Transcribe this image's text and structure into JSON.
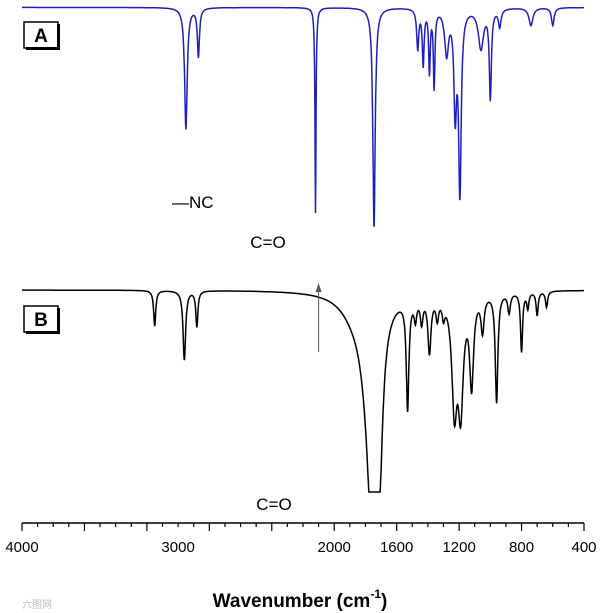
{
  "chart_data": {
    "type": "line",
    "xlabel": "Wavenumber (cm",
    "xlabel_unit_superscript": "-1",
    "xlabel_close": ")",
    "xlim": [
      4000,
      400
    ],
    "x_reversed": true,
    "xticks": [
      4000,
      3600,
      3200,
      2800,
      2400,
      2000,
      1600,
      1200,
      800,
      400
    ],
    "xtick_labels": [
      "4000",
      "3000",
      "2000",
      "1600",
      "1200",
      "800",
      "400"
    ],
    "xtick_label_positions": [
      4000,
      3000,
      2000,
      1600,
      1200,
      800,
      400
    ],
    "grid": false,
    "panels": [
      {
        "label": "A",
        "color": "#1f1fbf",
        "annotations": [
          {
            "text": "NC",
            "x": 2080,
            "leader": "—"
          },
          {
            "text": "C=O",
            "x": 1740
          }
        ],
        "series": {
          "baseline": 0.02,
          "peaks": [
            [
              2950,
              0.55,
              10
            ],
            [
              2870,
              0.22,
              8
            ],
            [
              2120,
              0.93,
              4
            ],
            [
              1745,
              1.0,
              9
            ],
            [
              1465,
              0.18,
              8
            ],
            [
              1430,
              0.25,
              7
            ],
            [
              1390,
              0.28,
              6
            ],
            [
              1360,
              0.35,
              6
            ],
            [
              1280,
              0.2,
              15
            ],
            [
              1225,
              0.45,
              10
            ],
            [
              1195,
              0.82,
              10
            ],
            [
              1060,
              0.18,
              20
            ],
            [
              1000,
              0.4,
              8
            ],
            [
              940,
              0.08,
              10
            ],
            [
              740,
              0.08,
              15
            ],
            [
              600,
              0.08,
              10
            ]
          ]
        }
      },
      {
        "label": "B",
        "color": "#000000",
        "annotations": [
          {
            "text": "C=O",
            "x": 1730
          },
          {
            "text": "",
            "x": 2100,
            "arrow": "up"
          }
        ],
        "series": {
          "baseline": 0.03,
          "peaks": [
            [
              3150,
              0.18,
              8
            ],
            [
              2960,
              0.35,
              10
            ],
            [
              2880,
              0.18,
              8
            ],
            [
              1760,
              0.75,
              30
            ],
            [
              1710,
              0.7,
              25
            ],
            [
              1780,
              0.35,
              60
            ],
            [
              1870,
              0.08,
              110
            ],
            [
              1530,
              0.55,
              10
            ],
            [
              1480,
              0.1,
              10
            ],
            [
              1440,
              0.12,
              10
            ],
            [
              1390,
              0.28,
              12
            ],
            [
              1340,
              0.1,
              10
            ],
            [
              1300,
              0.08,
              10
            ],
            [
              1230,
              0.55,
              20
            ],
            [
              1190,
              0.55,
              20
            ],
            [
              1120,
              0.45,
              15
            ],
            [
              1050,
              0.18,
              12
            ],
            [
              960,
              0.55,
              10
            ],
            [
              880,
              0.1,
              10
            ],
            [
              800,
              0.3,
              8
            ],
            [
              760,
              0.08,
              8
            ],
            [
              700,
              0.12,
              8
            ],
            [
              640,
              0.08,
              8
            ]
          ]
        }
      }
    ]
  },
  "watermark": "六图网"
}
